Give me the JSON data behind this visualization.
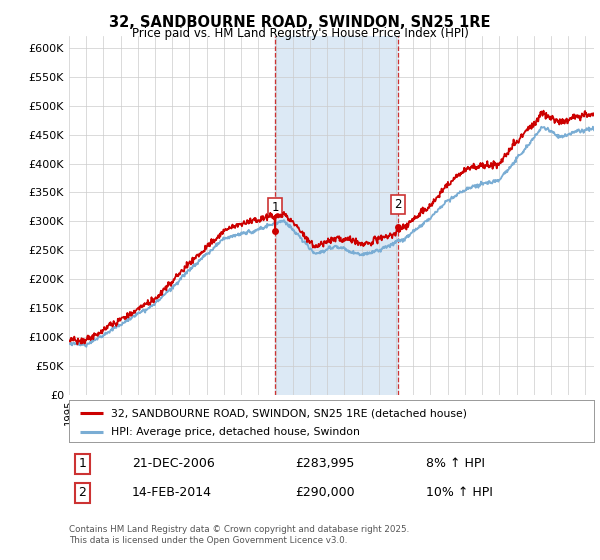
{
  "title": "32, SANDBOURNE ROAD, SWINDON, SN25 1RE",
  "subtitle": "Price paid vs. HM Land Registry's House Price Index (HPI)",
  "ylabel_ticks": [
    "£0",
    "£50K",
    "£100K",
    "£150K",
    "£200K",
    "£250K",
    "£300K",
    "£350K",
    "£400K",
    "£450K",
    "£500K",
    "£550K",
    "£600K"
  ],
  "ytick_values": [
    0,
    50000,
    100000,
    150000,
    200000,
    250000,
    300000,
    350000,
    400000,
    450000,
    500000,
    550000,
    600000
  ],
  "ylim": [
    0,
    620000
  ],
  "xlim_start": 1995.0,
  "xlim_end": 2025.5,
  "transaction1_date": 2006.97,
  "transaction1_price": 283995,
  "transaction1_label": "1",
  "transaction1_date_str": "21-DEC-2006",
  "transaction1_price_str": "£283,995",
  "transaction1_hpi_str": "8% ↑ HPI",
  "transaction2_date": 2014.12,
  "transaction2_price": 290000,
  "transaction2_label": "2",
  "transaction2_date_str": "14-FEB-2014",
  "transaction2_price_str": "£290,000",
  "transaction2_hpi_str": "10% ↑ HPI",
  "house_color": "#cc0000",
  "hpi_color": "#7aadd4",
  "highlight_fill": "#dce9f5",
  "highlight_edge": "#cc3333",
  "legend_house_label": "32, SANDBOURNE ROAD, SWINDON, SN25 1RE (detached house)",
  "legend_hpi_label": "HPI: Average price, detached house, Swindon",
  "footer": "Contains HM Land Registry data © Crown copyright and database right 2025.\nThis data is licensed under the Open Government Licence v3.0.",
  "background_color": "#ffffff",
  "grid_color": "#cccccc"
}
